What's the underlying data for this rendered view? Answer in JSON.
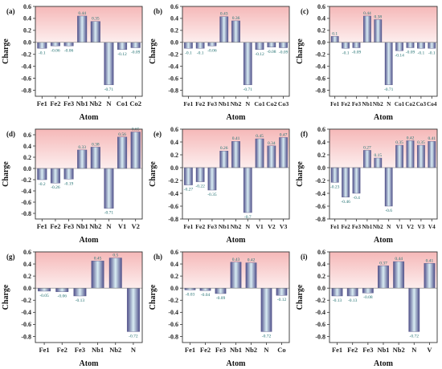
{
  "chart_data": [
    {
      "type": "bar",
      "panel_label": "(a)",
      "categories": [
        "Fe1",
        "Fe2",
        "Fe3",
        "Nb1",
        "Nb2",
        "N",
        "Co1",
        "Co2"
      ],
      "values": [
        -0.1,
        -0.06,
        -0.06,
        0.44,
        0.35,
        -0.71,
        -0.12,
        -0.09
      ],
      "value_labels": [
        "-0.1",
        "-0.06",
        "-0.06",
        "0.44",
        "0.35",
        "-0.71",
        "-0.12",
        "-0.09"
      ],
      "xlabel": "Atom",
      "ylabel": "Charge",
      "ylim": [
        -0.9,
        0.6
      ],
      "yticks": [
        "-0.8",
        "-0.6",
        "-0.4",
        "-0.2",
        "0.0",
        "0.2",
        "0.4",
        "0.6"
      ]
    },
    {
      "type": "bar",
      "panel_label": "(b)",
      "categories": [
        "Fe1",
        "Fe2",
        "Fe3",
        "Nb1",
        "Nb2",
        "N",
        "Co1",
        "Co2",
        "Co3"
      ],
      "values": [
        -0.1,
        -0.1,
        -0.06,
        0.43,
        0.36,
        -0.71,
        -0.12,
        -0.08,
        -0.09
      ],
      "value_labels": [
        "-0.1",
        "-0.1",
        "-0.06",
        "0.43",
        "0.36",
        "-0.71",
        "-0.12",
        "-0.08",
        "-0.09"
      ],
      "xlabel": "Atom",
      "ylabel": "Charge",
      "ylim": [
        -0.9,
        0.6
      ],
      "yticks": [
        "-0.8",
        "-0.6",
        "-0.4",
        "-0.2",
        "0.0",
        "0.2",
        "0.4",
        "0.6"
      ]
    },
    {
      "type": "bar",
      "panel_label": "(c)",
      "categories": [
        "Fe1",
        "Fe2",
        "Fe3",
        "Nb1",
        "Nb2",
        "N",
        "Co1",
        "Co2",
        "Co3",
        "Co4"
      ],
      "values": [
        0.1,
        -0.1,
        -0.09,
        0.44,
        0.38,
        -0.71,
        -0.14,
        -0.09,
        -0.1,
        -0.1
      ],
      "value_labels": [
        "0.1",
        "-0.1",
        "-0.09",
        "0.44",
        "0.38",
        "-0.71",
        "-0.14",
        "-0.09",
        "-0.1",
        "-0.1"
      ],
      "xlabel": "Atom",
      "ylabel": "Charge",
      "ylim": [
        -0.9,
        0.6
      ],
      "yticks": [
        "-0.8",
        "-0.6",
        "-0.4",
        "-0.2",
        "0.0",
        "0.2",
        "0.4",
        "0.6"
      ]
    },
    {
      "type": "bar",
      "panel_label": "(d)",
      "categories": [
        "Fe1",
        "Fe2",
        "Fe3",
        "Nb1",
        "Nb2",
        "N",
        "V1",
        "V2"
      ],
      "values": [
        -0.2,
        -0.26,
        -0.19,
        0.33,
        0.38,
        -0.71,
        0.56,
        0.65
      ],
      "value_labels": [
        "-0.2",
        "-0.26",
        "-0.19",
        "0.33",
        "0.38",
        "-0.71",
        "0.56",
        "0.65"
      ],
      "xlabel": "Atom",
      "ylabel": "Charge",
      "ylim": [
        -0.9,
        0.7
      ],
      "yticks": [
        "-0.8",
        "-0.6",
        "-0.4",
        "-0.2",
        "0.0",
        "0.2",
        "0.4",
        "0.6"
      ]
    },
    {
      "type": "bar",
      "panel_label": "(e)",
      "categories": [
        "Fe1",
        "Fe2",
        "Fe3",
        "Nb1",
        "Nb2",
        "N",
        "V1",
        "V2",
        "V3"
      ],
      "values": [
        -0.27,
        -0.22,
        -0.35,
        0.26,
        0.41,
        -0.7,
        0.45,
        0.34,
        0.47
      ],
      "value_labels": [
        "-0.27",
        "-0.22",
        "-0.35",
        "0.26",
        "0.41",
        "-0.7",
        "0.45",
        "0.34",
        "0.47"
      ],
      "xlabel": "Atom",
      "ylabel": "Charge",
      "ylim": [
        -0.8,
        0.6
      ],
      "yticks": [
        "-0.8",
        "-0.6",
        "-0.4",
        "-0.2",
        "0.0",
        "0.2",
        "0.4",
        "0.6"
      ]
    },
    {
      "type": "bar",
      "panel_label": "(f)",
      "categories": [
        "Fe1",
        "Fe2",
        "Fe3",
        "Nb1",
        "Nb2",
        "N",
        "V1",
        "V2",
        "V3",
        "V4"
      ],
      "values": [
        -0.23,
        -0.46,
        -0.4,
        0.27,
        0.15,
        -0.6,
        0.35,
        0.42,
        0.35,
        0.41
      ],
      "value_labels": [
        "-0.23",
        "-0.46",
        "-0.4",
        "0.27",
        "0.15",
        "-0.6",
        "0.35",
        "0.42",
        "0.35",
        "0.41"
      ],
      "xlabel": "Atom",
      "ylabel": "Charge",
      "ylim": [
        -0.8,
        0.6
      ],
      "yticks": [
        "-0.8",
        "-0.6",
        "-0.4",
        "-0.2",
        "0.0",
        "0.2",
        "0.4",
        "0.6"
      ]
    },
    {
      "type": "bar",
      "panel_label": "(g)",
      "categories": [
        "Fe1",
        "Fe2",
        "Fe3",
        "Nb1",
        "Nb2",
        "N"
      ],
      "values": [
        -0.05,
        -0.06,
        -0.13,
        0.45,
        0.5,
        -0.72
      ],
      "value_labels": [
        "-0.05",
        "-0.06",
        "-0.13",
        "0.45",
        "0.5",
        "-0.72"
      ],
      "xlabel": "Atom",
      "ylabel": "Charge",
      "ylim": [
        -0.9,
        0.6
      ],
      "yticks": [
        "-0.8",
        "-0.6",
        "-0.4",
        "-0.2",
        "0.0",
        "0.2",
        "0.4",
        "0.6"
      ]
    },
    {
      "type": "bar",
      "panel_label": "(h)",
      "categories": [
        "Fe1",
        "Fe2",
        "Fe3",
        "Nb1",
        "Nb2",
        "N",
        "Co"
      ],
      "values": [
        -0.03,
        -0.04,
        -0.09,
        0.43,
        0.42,
        -0.72,
        -0.12
      ],
      "value_labels": [
        "-0.03",
        "-0.04",
        "-0.09",
        "0.43",
        "0.42",
        "-0.72",
        "-0.12"
      ],
      "xlabel": "Atom",
      "ylabel": "Charge",
      "ylim": [
        -0.9,
        0.6
      ],
      "yticks": [
        "-0.8",
        "-0.6",
        "-0.4",
        "-0.2",
        "0.0",
        "0.2",
        "0.4",
        "0.6"
      ]
    },
    {
      "type": "bar",
      "panel_label": "(i)",
      "categories": [
        "Fe1",
        "Fe2",
        "Fe3",
        "Nb1",
        "Nb2",
        "N",
        "V"
      ],
      "values": [
        -0.13,
        -0.13,
        -0.08,
        0.37,
        0.44,
        -0.72,
        0.41
      ],
      "value_labels": [
        "-0.13",
        "-0.13",
        "-0.08",
        "0.37",
        "0.44",
        "-0.72",
        "0.41"
      ],
      "xlabel": "Atom",
      "ylabel": "Charge",
      "ylim": [
        -0.9,
        0.6
      ],
      "yticks": [
        "-0.8",
        "-0.6",
        "-0.4",
        "-0.2",
        "0.0",
        "0.2",
        "0.4",
        "0.6"
      ]
    }
  ],
  "colors": {
    "positive_region": "#f5b8b8",
    "bar_dark": "#4f4f8a",
    "bar_light": "#d9edf3",
    "value_label": "#1f6f6f",
    "axis": "#333333"
  }
}
